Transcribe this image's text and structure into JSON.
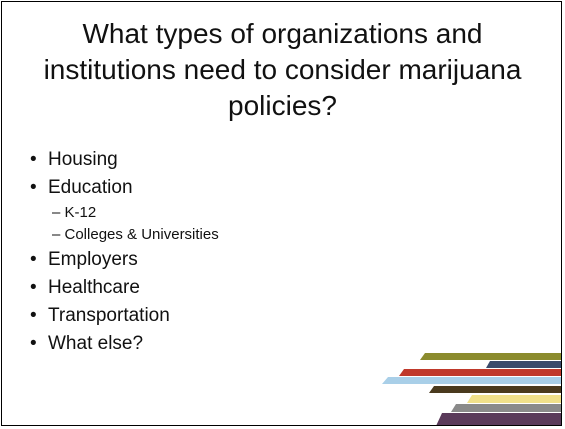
{
  "slide": {
    "title": "What types of organizations and institutions need to consider marijuana policies?",
    "bullets": [
      {
        "label": "Housing",
        "sub": []
      },
      {
        "label": "Education",
        "sub": [
          "– K-12",
          "– Colleges & Universities"
        ]
      },
      {
        "label": "Employers",
        "sub": []
      },
      {
        "label": "Healthcare",
        "sub": []
      },
      {
        "label": "Transportation",
        "sub": []
      },
      {
        "label": "What else?",
        "sub": []
      }
    ],
    "bullet_glyph": "•"
  },
  "decoration": {
    "stripe_colors": [
      "#8b8b2e",
      "#3a4a6b",
      "#c0392b",
      "#a9cfe8",
      "#4a3a1e",
      "#f0e08a",
      "#8a8a8a",
      "#5a3a5a"
    ]
  }
}
